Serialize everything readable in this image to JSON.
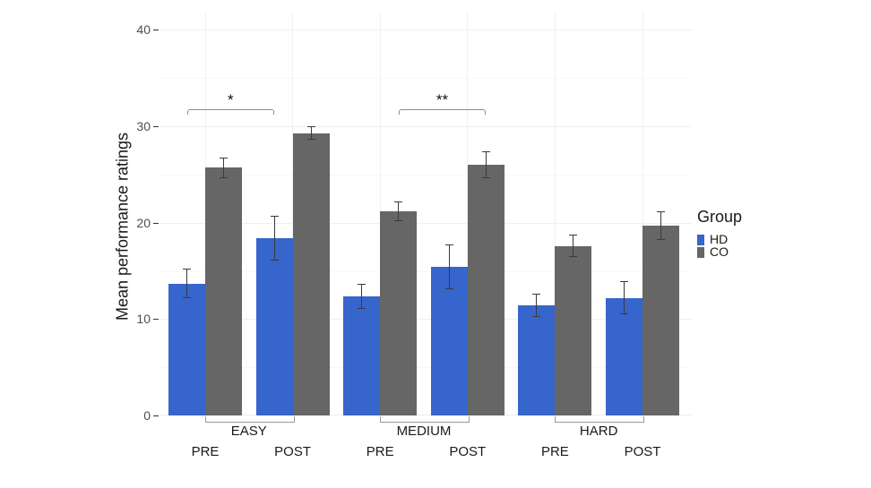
{
  "chart_data": {
    "type": "bar",
    "title": "",
    "ylabel": "Mean performance ratings",
    "xlabel": "",
    "ylim": [
      0,
      41.9
    ],
    "yticks": [
      0,
      10,
      20,
      30,
      40
    ],
    "yticks_minor": [
      5,
      15,
      25,
      35
    ],
    "grid": "faint horizontal major+minor gridlines; faint vertical gridlines at each PRE/POST pair center",
    "legend_position": "right",
    "x_group_labels": [
      "EASY",
      "MEDIUM",
      "HARD"
    ],
    "x_tick_labels": [
      "PRE",
      "POST",
      "PRE",
      "POST",
      "PRE",
      "POST"
    ],
    "series": [
      {
        "name": "HD",
        "color": "#3665cb",
        "values": [
          13.7,
          18.4,
          12.4,
          15.4,
          11.4,
          12.2
        ],
        "errors": [
          1.5,
          2.3,
          1.3,
          2.3,
          1.2,
          1.7
        ]
      },
      {
        "name": "CO",
        "color": "#666666",
        "values": [
          25.7,
          29.3,
          21.2,
          26.0,
          17.6,
          19.7
        ],
        "errors": [
          1.1,
          0.7,
          1.0,
          1.4,
          1.2,
          1.5
        ]
      }
    ],
    "significance": [
      {
        "label": "*",
        "series": "HD",
        "from": 0,
        "to": 1,
        "y": 31.8
      },
      {
        "label": "**",
        "series": "CO",
        "from": 2,
        "to": 3,
        "y": 31.8
      }
    ]
  },
  "legend": {
    "title": "Group",
    "items": [
      {
        "label": "HD",
        "color": "#3665cb"
      },
      {
        "label": "CO",
        "color": "#666666"
      }
    ]
  },
  "style_colors": {
    "grid_major": "#efefef",
    "grid_minor": "#f7f7f7",
    "grid_vertical": "#f1f1f1",
    "baseline": "#ececec",
    "error_bar": "#3a3a3a",
    "axis_tick": "#333333",
    "sig_bracket": "#8c8c8c",
    "group_bracket": "#9a9a9a"
  }
}
